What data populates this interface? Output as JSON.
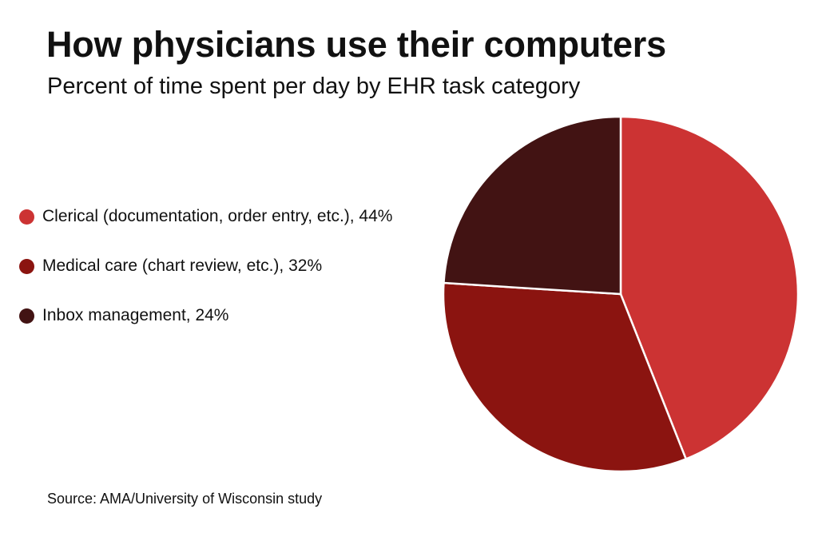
{
  "header": {
    "title": "How physicians use their computers",
    "subtitle": "Percent of time spent per day by EHR task category"
  },
  "legend": {
    "items": [
      {
        "label": "Clerical (documentation, order entry, etc.), 44%",
        "color": "#cc3333"
      },
      {
        "label": "Medical care (chart review, etc.), 32%",
        "color": "#8b1410"
      },
      {
        "label": "Inbox management, 24%",
        "color": "#421313"
      }
    ]
  },
  "footer": {
    "source": "Source: AMA/University of Wisconsin study"
  },
  "chart_data": {
    "type": "pie",
    "title": "How physicians use their computers",
    "subtitle": "Percent of time spent per day by EHR task category",
    "categories": [
      "Clerical (documentation, order entry, etc.)",
      "Medical care (chart review, etc.)",
      "Inbox management"
    ],
    "values": [
      44,
      32,
      24
    ],
    "unit": "%",
    "colors": [
      "#cc3333",
      "#8b1410",
      "#421313"
    ],
    "legend": "left",
    "start": "12 o'clock",
    "direction": "clockwise"
  }
}
